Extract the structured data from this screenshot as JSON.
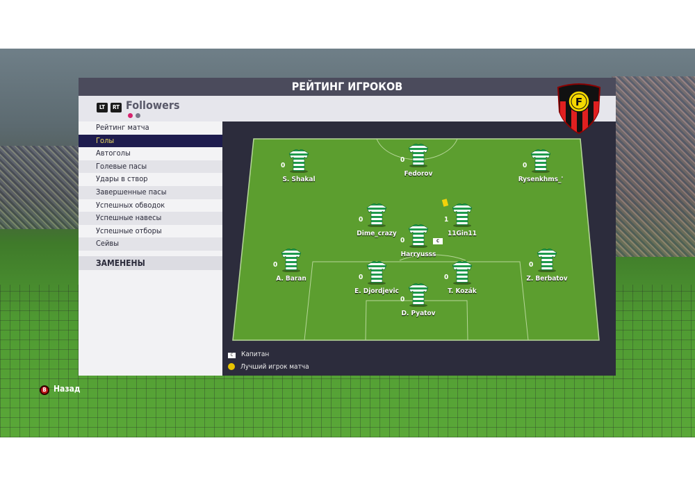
{
  "title": "РЕЙТИНГ ИГРОКОВ",
  "team": {
    "name": "Followers",
    "lt": "LT",
    "rt": "RT",
    "page_dots": [
      {
        "color": "#d6246e"
      },
      {
        "color": "#7a7a8a"
      }
    ]
  },
  "crest": {
    "letter": "F",
    "colors": [
      "#e02020",
      "#111111",
      "#f5d800"
    ]
  },
  "menu": {
    "items": [
      "Рейтинг матча",
      "Голы",
      "Автоголы",
      "Голевые пасы",
      "Удары в створ",
      "Завершенные пасы",
      "Успешных обводок",
      "Успешные навесы",
      "Успешные отборы",
      "Сейвы"
    ],
    "selected": 1,
    "subs_label": "ЗАМЕНЕНЫ"
  },
  "players": [
    {
      "name": "S. Shakal",
      "value": "0"
    },
    {
      "name": "Fedorov",
      "value": "0"
    },
    {
      "name": "Rysenkhms_'",
      "value": "0"
    },
    {
      "name": "Dime_crazy",
      "value": "0"
    },
    {
      "name": "11Gin11",
      "value": "1",
      "yellow_card": true
    },
    {
      "name": "Harryusss",
      "value": "0",
      "captain": true
    },
    {
      "name": "A. Baran",
      "value": "0"
    },
    {
      "name": "E. Djordjevic",
      "value": "0"
    },
    {
      "name": "T. Kozák",
      "value": "0"
    },
    {
      "name": "Z. Berbatov",
      "value": "0"
    },
    {
      "name": "D. Pyatov",
      "value": "0"
    }
  ],
  "legend": {
    "captain": "Капитан",
    "captain_icon": "C",
    "motm": "Лучший игрок матча"
  },
  "back": {
    "button": "B",
    "label": "Назад"
  }
}
